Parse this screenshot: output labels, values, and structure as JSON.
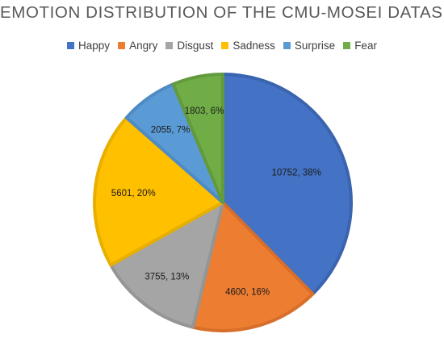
{
  "chart_data": {
    "type": "pie",
    "title": "EMOTION DISTRIBUTION OF THE CMU-MOSEI DATASET",
    "legend_position": "top",
    "categories": [
      "Happy",
      "Angry",
      "Disgust",
      "Sadness",
      "Surprise",
      "Fear"
    ],
    "values": [
      10752,
      4600,
      3755,
      5601,
      2055,
      1803
    ],
    "data_labels": [
      "10752, 38%",
      "4600, 16%",
      "3755, 13%",
      "5601, 20%",
      "2055, 7%",
      "1803, 6%"
    ],
    "colors": [
      "#4472C4",
      "#ED7D31",
      "#A5A5A5",
      "#FFC000",
      "#5B9BD5",
      "#70AD47"
    ],
    "borders": [
      "#3A64AF",
      "#D76E29",
      "#959595",
      "#E8AF00",
      "#4E8BC4",
      "#629A3D"
    ]
  }
}
